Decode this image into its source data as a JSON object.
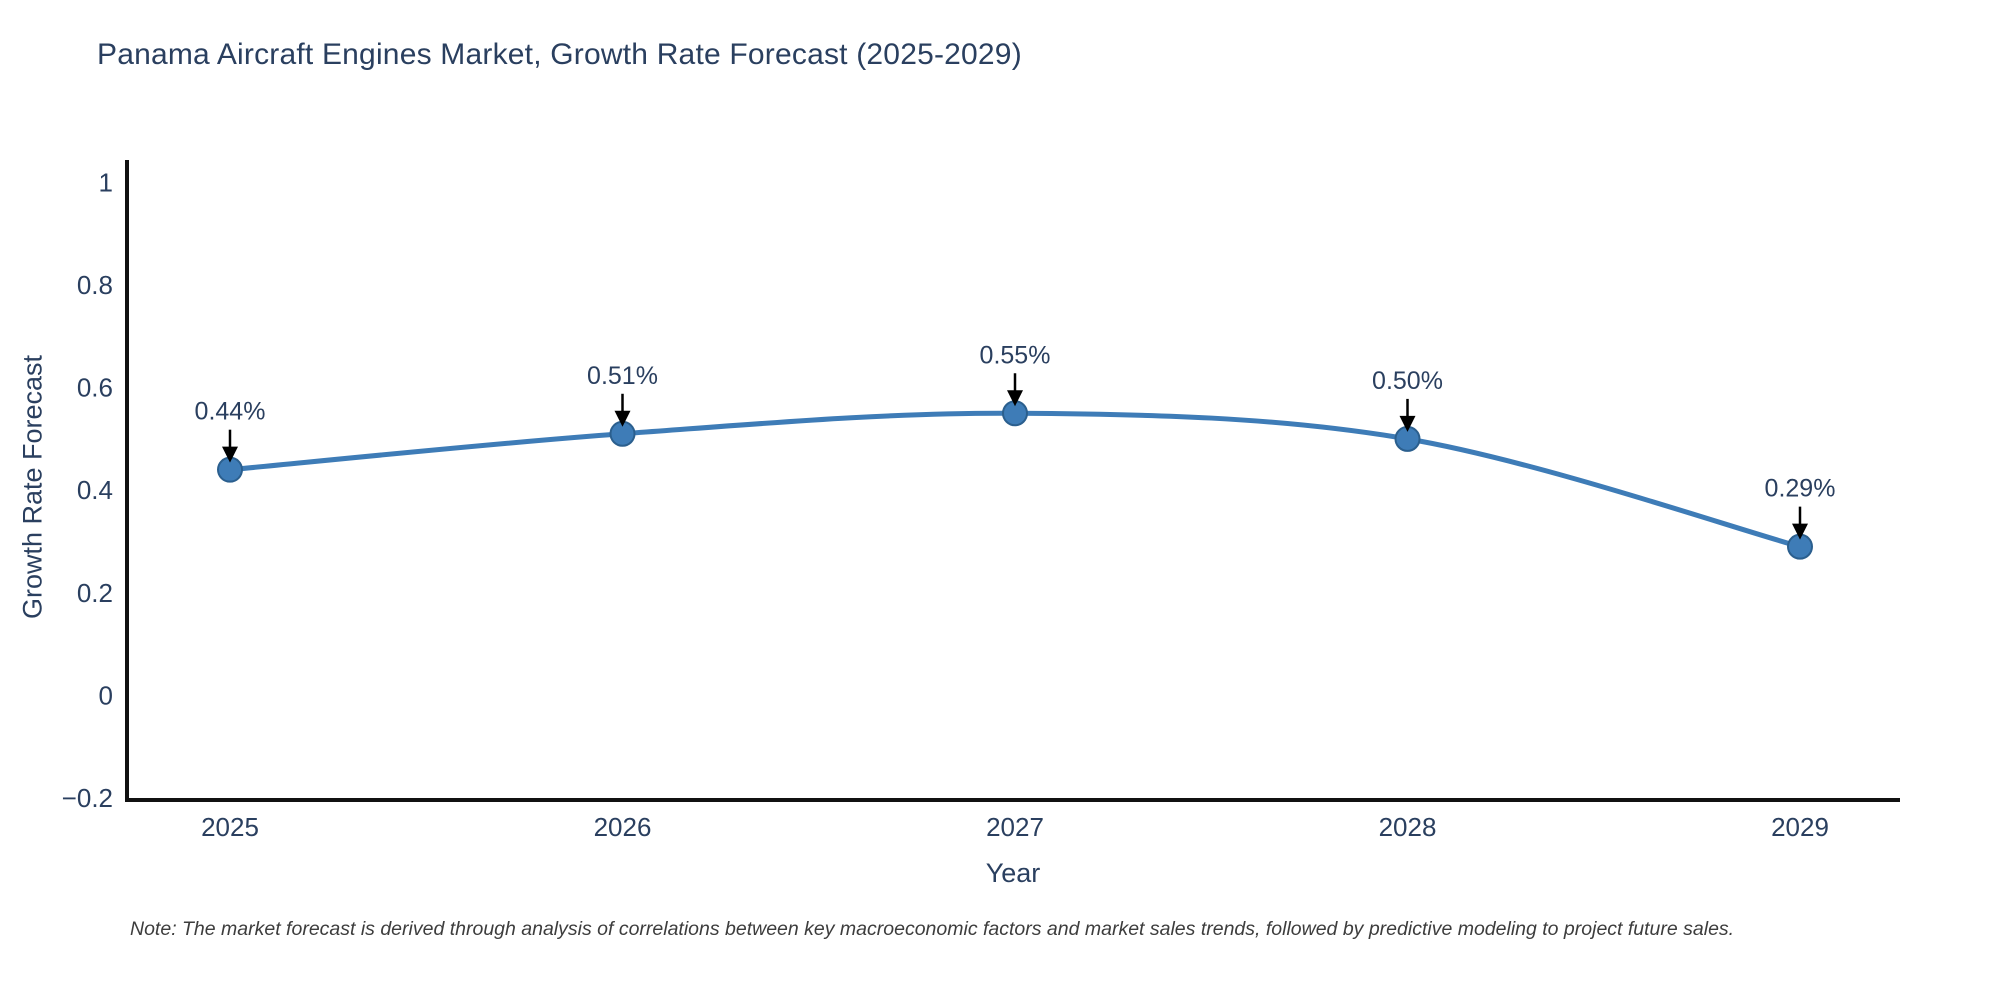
{
  "note": "Note: The market forecast is derived through analysis of correlations between key macroeconomic factors and market sales trends, followed by predictive modeling to project future sales.",
  "chart_data": {
    "type": "line",
    "title": "Panama Aircraft Engines Market, Growth Rate Forecast (2025-2029)",
    "xlabel": "Year",
    "ylabel": "Growth Rate Forecast",
    "x": [
      2025,
      2026,
      2027,
      2028,
      2029
    ],
    "y": [
      0.44,
      0.51,
      0.55,
      0.5,
      0.29
    ],
    "point_labels": [
      "0.44%",
      "0.51%",
      "0.55%",
      "0.50%",
      "0.29%"
    ],
    "xtick_labels": [
      "2025",
      "2026",
      "2027",
      "2028",
      "2029"
    ],
    "yticks": [
      {
        "v": 1,
        "label": "1"
      },
      {
        "v": 0.8,
        "label": "0.8"
      },
      {
        "v": 0.6,
        "label": "0.6"
      },
      {
        "v": 0.4,
        "label": "0.4"
      },
      {
        "v": 0.2,
        "label": "0.2"
      },
      {
        "v": 0,
        "label": "0"
      },
      {
        "v": -0.2,
        "label": "−0.2"
      }
    ],
    "ylim": [
      -0.2,
      1.047
    ],
    "line_shape": "spline",
    "grid": false,
    "legend": "none",
    "colors": {
      "line": "#3E7CB7",
      "marker_fill": "#3E7CB7",
      "marker_border": "#2B5F8E",
      "axis_line": "#111111",
      "text": "#2A3F5F",
      "annotation_text": "#2A3F5F",
      "annotation_arrow": "#000000",
      "note_text": "#3D3D3D"
    }
  }
}
